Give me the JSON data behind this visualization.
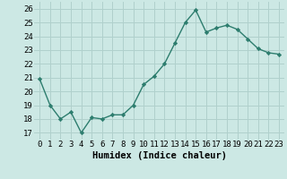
{
  "x": [
    0,
    1,
    2,
    3,
    4,
    5,
    6,
    7,
    8,
    9,
    10,
    11,
    12,
    13,
    14,
    15,
    16,
    17,
    18,
    19,
    20,
    21,
    22,
    23
  ],
  "y": [
    20.9,
    19.0,
    18.0,
    18.5,
    17.0,
    18.1,
    18.0,
    18.3,
    18.3,
    19.0,
    20.5,
    21.1,
    22.0,
    23.5,
    25.0,
    25.9,
    24.3,
    24.6,
    24.8,
    24.5,
    23.8,
    23.1,
    22.8,
    22.7
  ],
  "xlabel": "Humidex (Indice chaleur)",
  "ylim": [
    16.5,
    26.5
  ],
  "xlim": [
    -0.5,
    23.5
  ],
  "yticks": [
    17,
    18,
    19,
    20,
    21,
    22,
    23,
    24,
    25,
    26
  ],
  "xticks": [
    0,
    1,
    2,
    3,
    4,
    5,
    6,
    7,
    8,
    9,
    10,
    11,
    12,
    13,
    14,
    15,
    16,
    17,
    18,
    19,
    20,
    21,
    22,
    23
  ],
  "line_color": "#2d7d6e",
  "marker": "D",
  "marker_size": 2.2,
  "bg_color": "#cce8e4",
  "grid_color": "#b0d0cc",
  "xlabel_fontsize": 7.5,
  "tick_fontsize": 6.5
}
